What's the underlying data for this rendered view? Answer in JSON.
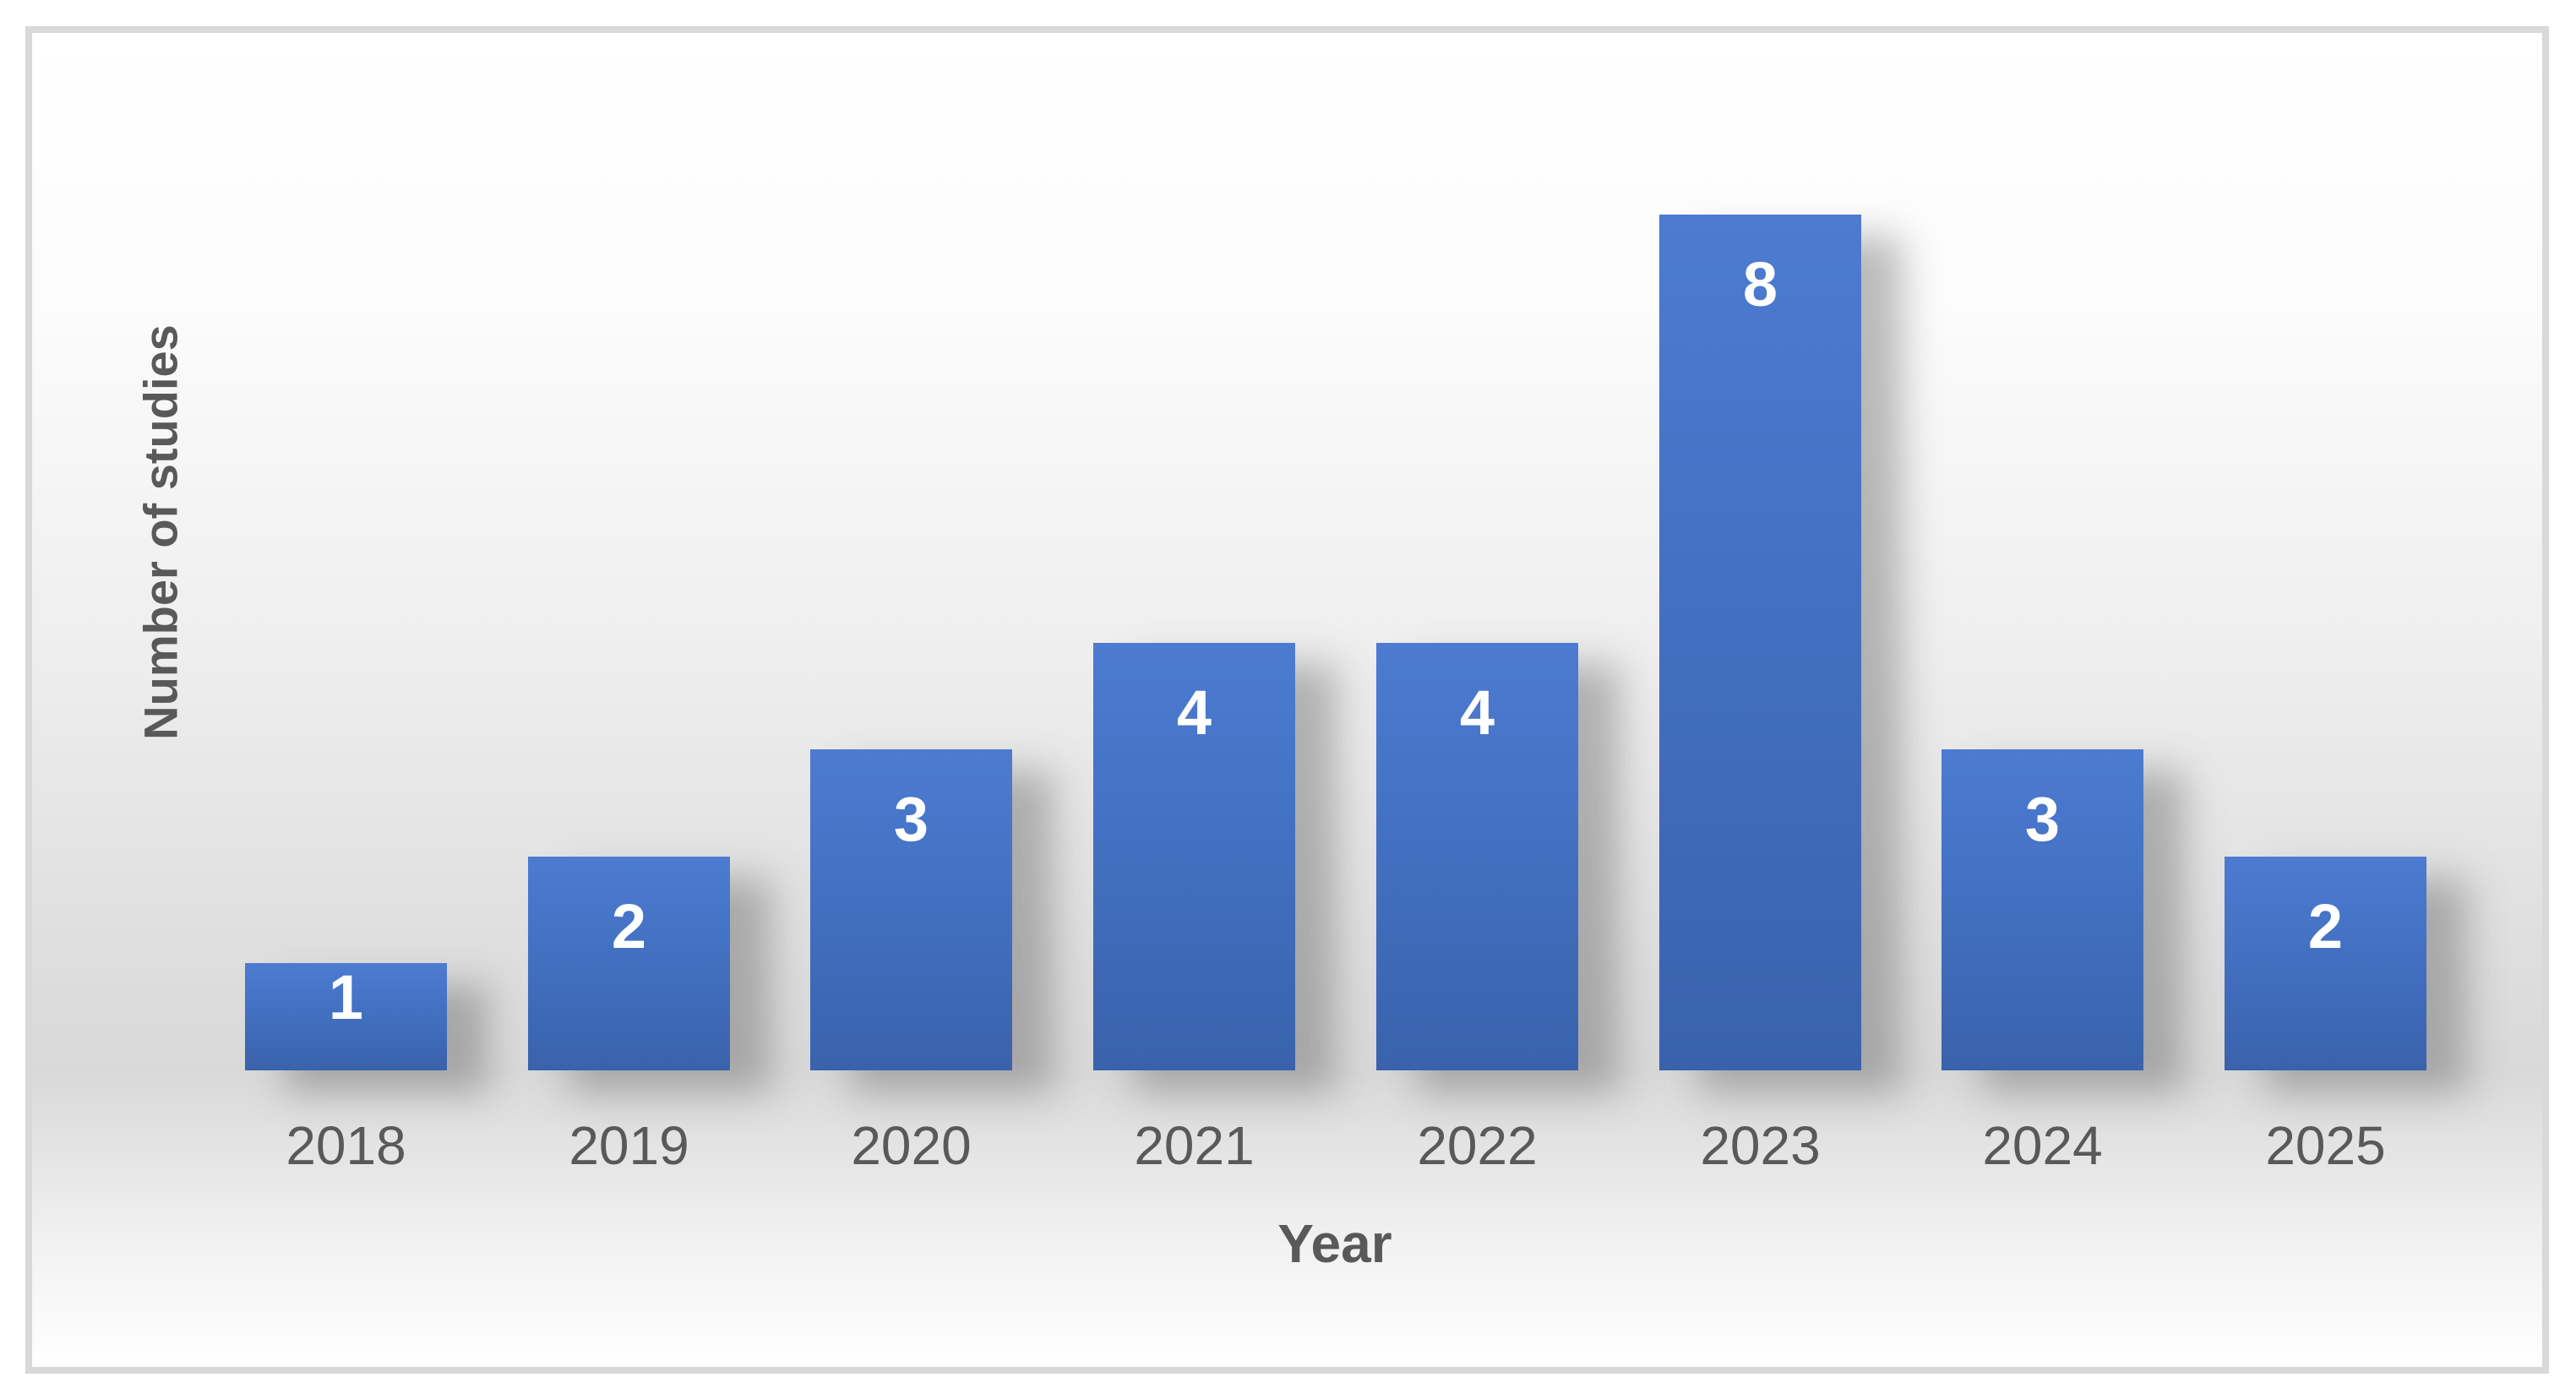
{
  "chart_data": {
    "type": "bar",
    "title": "",
    "categories": [
      "2018",
      "2019",
      "2020",
      "2021",
      "2022",
      "2023",
      "2024",
      "2025"
    ],
    "values": [
      1,
      2,
      3,
      4,
      4,
      8,
      3,
      2
    ],
    "xlabel": "Year",
    "ylabel": "Number of studies",
    "ylim": [
      0,
      8
    ],
    "grid": false,
    "legend_position": "none",
    "axis_lines": false,
    "data_label_position": "inside-end",
    "colors": {
      "bar": "#4472C4",
      "bar_gradient_top": "#4C7BD1",
      "bar_gradient_bottom": "#3A62AC",
      "value_label": "#FFFFFF",
      "axis_text": "#595959",
      "frame_border": "#D9D9D9",
      "background_peak_gray": "#D9D9D9"
    }
  }
}
